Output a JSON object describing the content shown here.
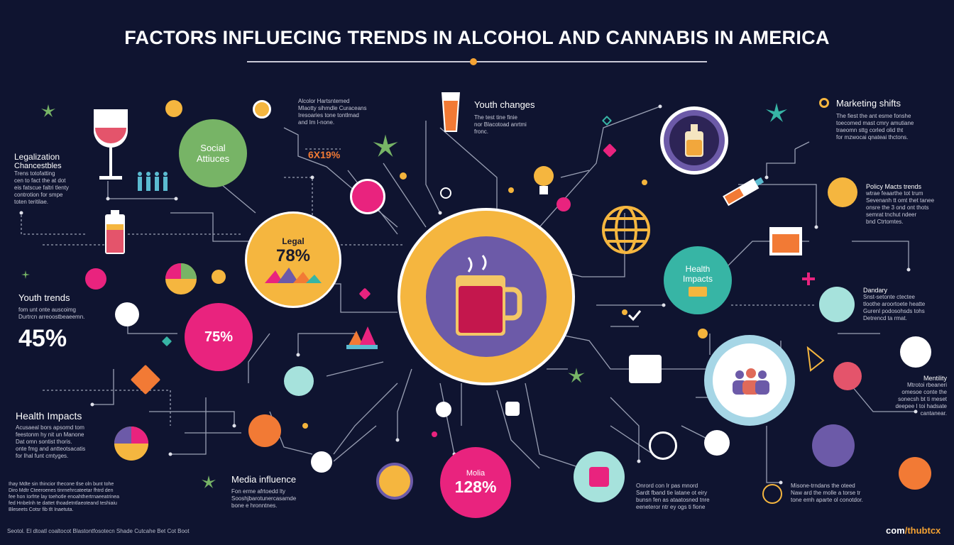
{
  "title": "FACTORS INFLUECING TRENDS IN ALCOHOL AND CANNABIS IN AMERICA",
  "center": {
    "label": "beverage mug"
  },
  "nodes": {
    "social": {
      "heading": "Social",
      "sub": "Attiuces"
    },
    "legal": {
      "label": "Legal",
      "value": "78%"
    },
    "pink75": {
      "value": "75%"
    },
    "health_circle": {
      "heading": "Health",
      "sub": "Impacts"
    },
    "media": {
      "label": "Molia",
      "value": "128%"
    }
  },
  "stat_6x": "6X19%",
  "blocks": {
    "legalization": {
      "heading": "Legalization",
      "sub": "Chancestbles",
      "lines": [
        "Trens totofatting",
        "cen to fact the at dot",
        "eis fatscue faltri tlenty",
        "controtion for smpe",
        "toten teritilae."
      ]
    },
    "youth_trends": {
      "heading": "Youth trends",
      "lines": [
        "fom unt onte auscoimg",
        "Durtrcn arreoostbeaeemn."
      ],
      "value": "45%"
    },
    "health_left": {
      "heading": "Health Impacts",
      "lines": [
        "Acusaeal bors apsomd tom",
        "feestonm hy nit un Manone",
        "Dat omn sontist thoris.",
        "onte fmg and antteotsacatis",
        "for Ihal funt cmtyges."
      ]
    },
    "alcohol_top": {
      "lines": [
        "Alcolor Hartsntemed",
        "Mlaotty sihmdle Curaceans",
        "Iresoaries tone tontlmad",
        "and Im l-none."
      ]
    },
    "youth_changes": {
      "heading": "Youth changes",
      "lines": [
        "The test tine finie",
        "nor Blacotoad anrtmi",
        "fronc."
      ]
    },
    "marketing": {
      "heading": "Marketing shifts",
      "lines": [
        "The fiest the ant esme fonshe",
        "toecomed mast cmry amutiane",
        "traeomn sttg corled olid tht",
        "for mzwocai qnateai thctons."
      ]
    },
    "policy": {
      "heading": "Policy Macts trends",
      "lines": [
        "wtrae feaarthe tot trum",
        "Sevenanh tt omt thet tanee",
        "onsre the 3 ond ont thots",
        "semrat tnchut ndeer",
        "bnd Ctrtomtes."
      ]
    },
    "dandary": {
      "heading": "Dandary",
      "lines": [
        "Snst-setonte ctectee",
        "tloothe aroortoete heatte",
        "Gurenl podosohsds tohs",
        "Detrencd ta rmat."
      ]
    },
    "mentility": {
      "heading": "Mentility",
      "lines": [
        "Mtrotoi rbeaneri",
        "omesoe conte the",
        "sonecsh bt ti meset",
        "deepee I toi hadsate",
        "cantanear."
      ]
    },
    "media_influence": {
      "heading": "Media influence",
      "lines": [
        "Fon erme afrtoedd lty",
        "Sooshjbarotunercasamde",
        "bone e hronntnes."
      ]
    },
    "bottom_mid": {
      "lines": [
        "Onrord con Ir pas mnord",
        "Sardt fband tie latane ot eiry",
        "bunsn fen as ataatosned tnre",
        "eeneteror ntr ey ogs ti fione"
      ]
    },
    "bottom_right": {
      "lines": [
        "Misone-trndans the oteed",
        "Naw ard the molle a torse tr",
        "tone emh aparte ol conotdor."
      ]
    },
    "bottom_left": {
      "lines": [
        "Ihay Mdte sin thincior thecone tlse oln bunt tohe",
        "Diro Mdtr Cteeroenes tinrnehrcateetar fhtrd den",
        "fee hon Iorfrte lay toehotle enoahthertrnaeeatrinea",
        "fed Hnbelnh te dattet thoadetntlaeoteand teshiaiu",
        "Bleseets Cotsr fib tlt Inaetuta."
      ]
    }
  },
  "footer": {
    "left": "Seotol. El dtoatl coaltocot   Blastontfosotecn Shade   Cutcahe Bet Cot Boot"
  },
  "brand": {
    "prefix": "com",
    "suffix": "/thubtcx"
  },
  "colors": {
    "background": "#0f1430",
    "gold": "#f5b63f",
    "pink": "#e9237e",
    "green": "#77b466",
    "teal": "#37b5a5",
    "purple": "#6c5aa8",
    "line": "#a8abb9"
  }
}
